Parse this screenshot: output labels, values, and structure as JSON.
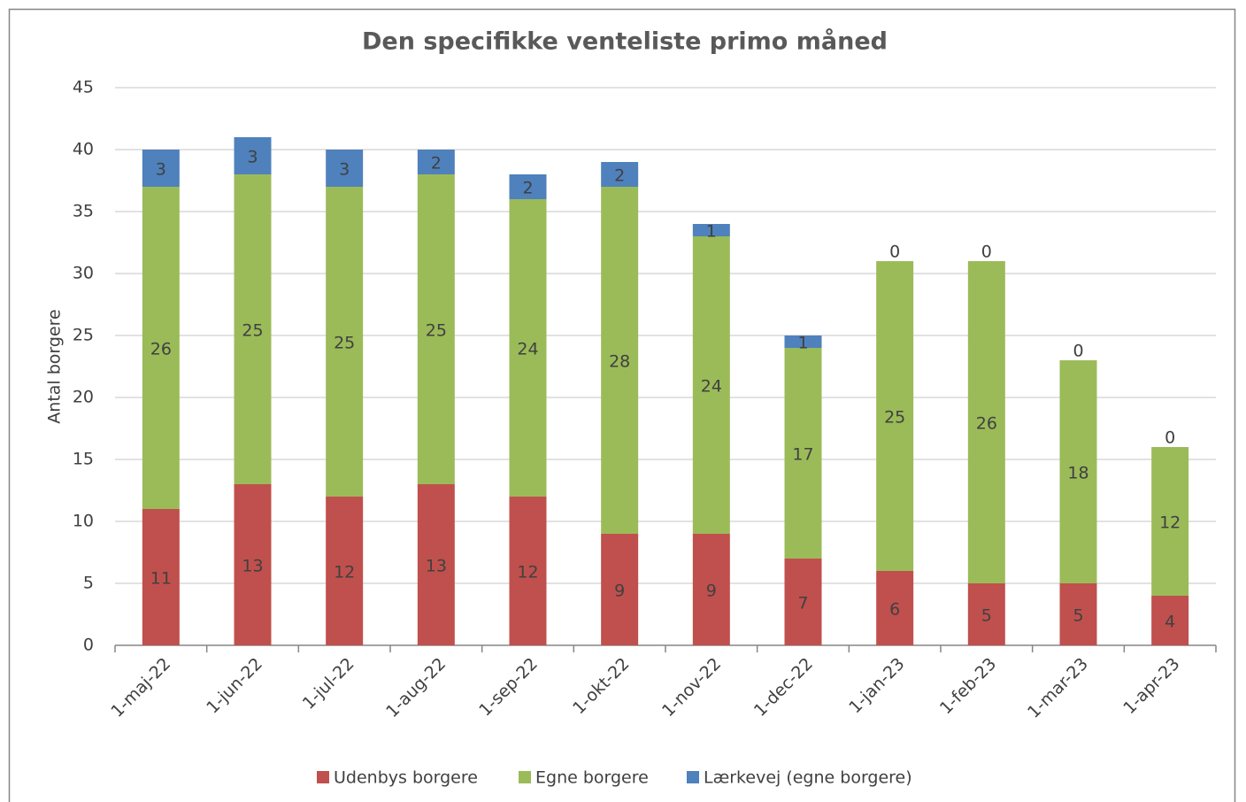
{
  "chart_data": {
    "type": "bar",
    "stacked": true,
    "title": "Den specifikke venteliste primo måned",
    "y_label": "Antal borgere",
    "categories": [
      "1-maj-22",
      "1-jun-22",
      "1-jul-22",
      "1-aug-22",
      "1-sep-22",
      "1-okt-22",
      "1-nov-22",
      "1-dec-22",
      "1-jan-23",
      "1-feb-23",
      "1-mar-23",
      "1-apr-23"
    ],
    "series": [
      {
        "name": "Udenbys borgere",
        "color": "#c0504d",
        "values": [
          11,
          13,
          12,
          13,
          12,
          9,
          9,
          7,
          6,
          5,
          5,
          4
        ]
      },
      {
        "name": "Egne borgere",
        "color": "#9bbb59",
        "values": [
          26,
          25,
          25,
          25,
          24,
          28,
          24,
          17,
          25,
          26,
          18,
          12
        ]
      },
      {
        "name": "Lærkevej (egne borgere)",
        "color": "#4f81bd",
        "values": [
          3,
          3,
          3,
          2,
          2,
          2,
          1,
          1,
          0,
          0,
          0,
          0
        ]
      }
    ],
    "ylim": [
      0,
      45
    ],
    "yticks": [
      0,
      5,
      10,
      15,
      20,
      25,
      30,
      35,
      40,
      45
    ],
    "grid": true,
    "legend": "bottom"
  }
}
